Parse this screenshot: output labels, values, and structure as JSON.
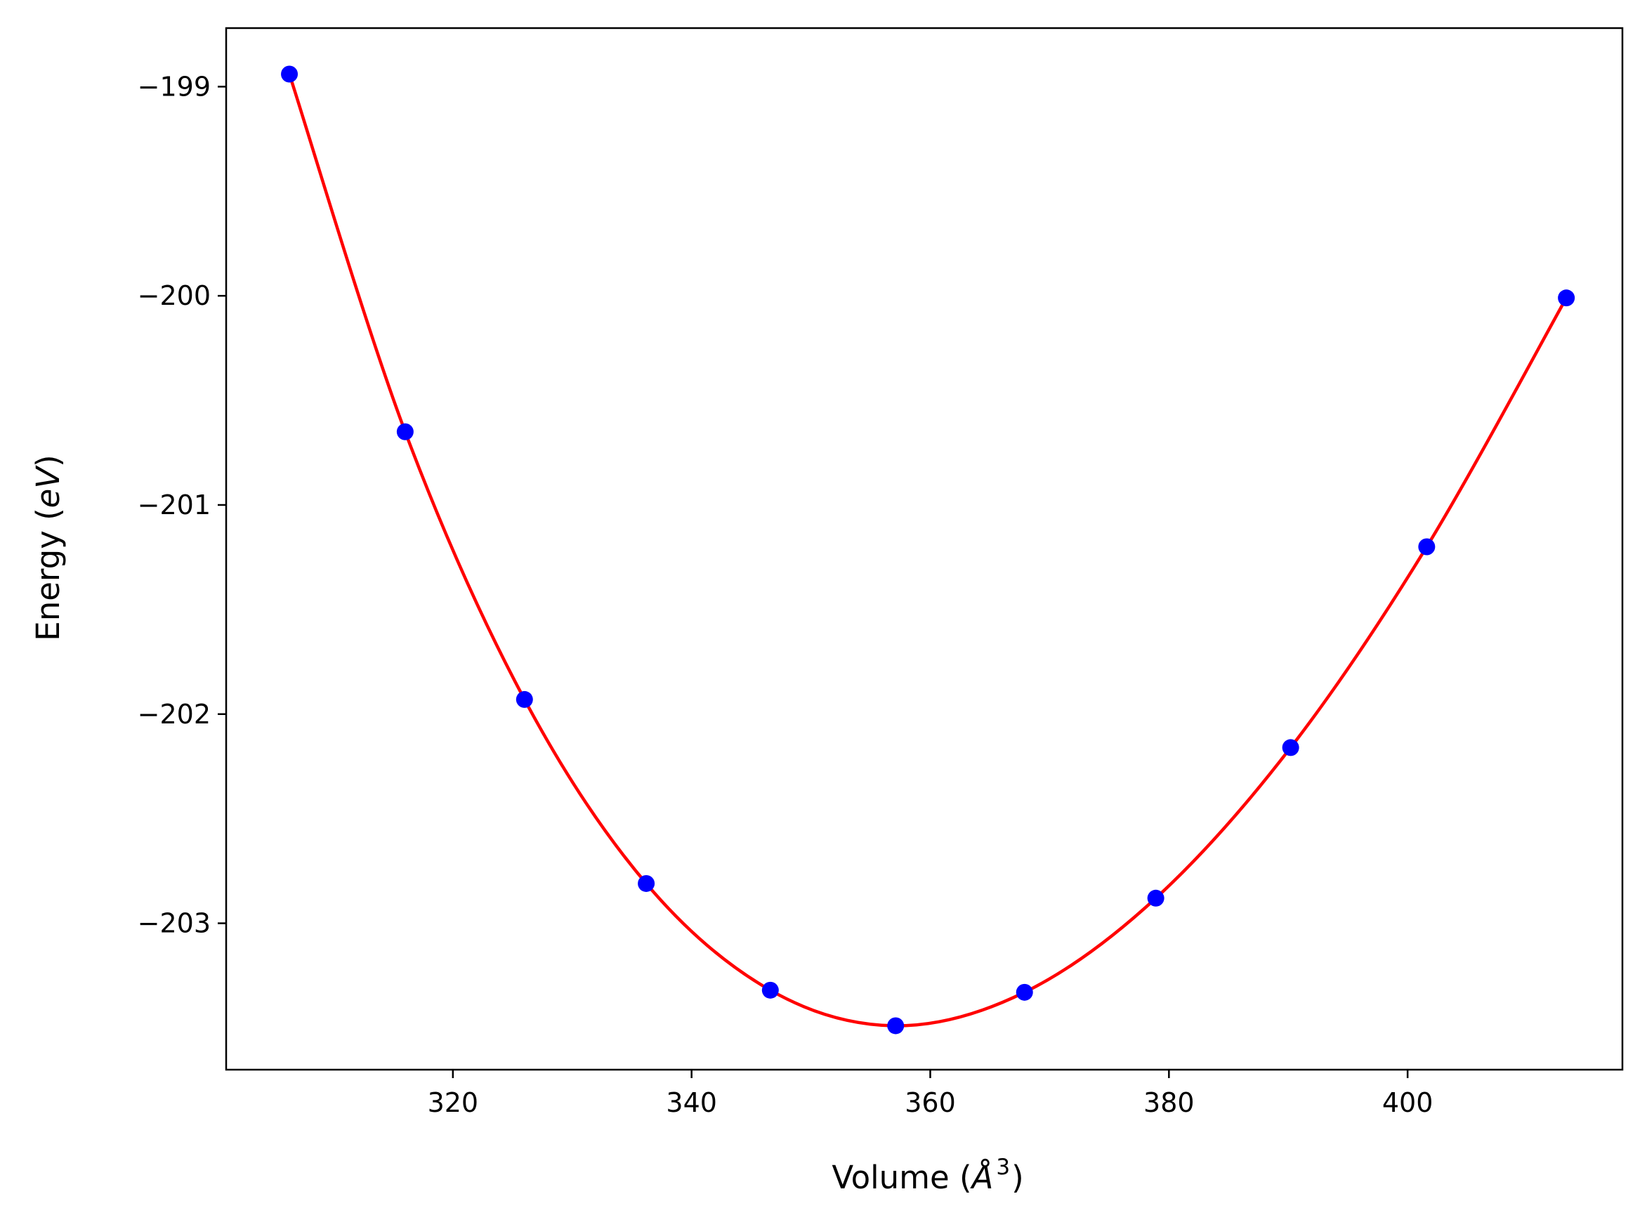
{
  "chart_data": {
    "type": "line",
    "xlabel_prefix": "Volume (",
    "xlabel_symbol": "Å",
    "xlabel_exp": "3",
    "xlabel_suffix": ")",
    "ylabel_prefix": "Energy (",
    "ylabel_unit": "eV",
    "ylabel_suffix": ")",
    "xlim": [
      301,
      418
    ],
    "ylim": [
      -203.7,
      -198.72
    ],
    "xticks": [
      320,
      340,
      360,
      380,
      400
    ],
    "xtick_labels": [
      "320",
      "340",
      "360",
      "380",
      "400"
    ],
    "yticks": [
      -199,
      -200,
      -201,
      -202,
      -203
    ],
    "ytick_labels": [
      "−199",
      "−200",
      "−201",
      "−202",
      "−203"
    ],
    "grid": false,
    "series": [
      {
        "style": "markers",
        "color": "#0000ff",
        "x": [
          306.3,
          316.0,
          326.0,
          336.2,
          346.6,
          357.1,
          367.9,
          378.9,
          390.2,
          401.6,
          413.3
        ],
        "y": [
          -198.94,
          -200.65,
          -201.93,
          -202.81,
          -203.32,
          -203.49,
          -203.33,
          -202.88,
          -202.16,
          -201.2,
          -200.01
        ]
      },
      {
        "style": "line",
        "color": "#ff0000",
        "x": [
          306.3,
          316.0,
          326.0,
          336.2,
          346.6,
          357.1,
          367.9,
          378.9,
          390.2,
          401.6,
          413.3
        ],
        "y": [
          -198.94,
          -200.65,
          -201.93,
          -202.81,
          -203.32,
          -203.49,
          -203.33,
          -202.88,
          -202.16,
          -201.2,
          -200.01
        ]
      }
    ]
  }
}
